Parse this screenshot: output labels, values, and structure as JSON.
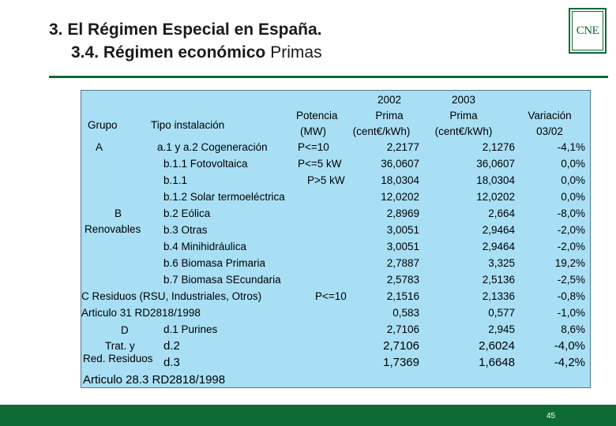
{
  "header": {
    "title_line1": "3. El Régimen Especial en España.",
    "title_line2_main": "3.4. Régimen económico",
    "title_line2_sub": "Primas",
    "logo_text": "CNE"
  },
  "table": {
    "col_headers": {
      "grupo": "Grupo",
      "tipo": "Tipo instalación",
      "potencia_line1": "Potencia",
      "potencia_line2": "(MW)",
      "y2002_line0": "2002",
      "y2002_line1": "Prima",
      "y2002_line2": "(cent€/kWh)",
      "y2003_line0": "2003",
      "y2003_line1": "Prima",
      "y2003_line2": "(cent€/kWh)",
      "var_line1": "Variación",
      "var_line2": "03/02"
    },
    "group_labels": {
      "a": "A",
      "b1": "B",
      "b2": "Renovables",
      "d1": "D",
      "d2": "Trat. y",
      "d3": "Red. Residuos"
    },
    "rows": [
      {
        "tipo": "a.1 y a.2 Cogeneración",
        "potencia": "P<=10",
        "p2002": "2,2177",
        "p2003": "2,1276",
        "var": "-4,1%"
      },
      {
        "tipo": "b.1.1 Fotovoltaica",
        "potencia": "P<=5 kW",
        "p2002": "36,0607",
        "p2003": "36,0607",
        "var": "0,0%"
      },
      {
        "tipo": "b.1.1",
        "potencia": "P>5 kW",
        "p2002": "18,0304",
        "p2003": "18,0304",
        "var": "0,0%"
      },
      {
        "tipo": "b.1.2 Solar termoeléctrica",
        "potencia": "",
        "p2002": "12,0202",
        "p2003": "12,0202",
        "var": "0,0%"
      },
      {
        "tipo": "b.2 Eólica",
        "potencia": "",
        "p2002": "2,8969",
        "p2003": "2,664",
        "var": "-8,0%"
      },
      {
        "tipo": "b.3 Otras",
        "potencia": "",
        "p2002": "3,0051",
        "p2003": "2,9464",
        "var": "-2,0%"
      },
      {
        "tipo": "b.4 Minihidráulica",
        "potencia": "",
        "p2002": "3,0051",
        "p2003": "2,9464",
        "var": "-2,0%"
      },
      {
        "tipo": "b.6 Biomasa Primaria",
        "potencia": "",
        "p2002": "2,7887",
        "p2003": "3,325",
        "var": "19,2%"
      },
      {
        "tipo": "b.7 Biomasa SEcundaria",
        "potencia": "",
        "p2002": "2,5783",
        "p2003": "2,5136",
        "var": "-2,5%"
      },
      {
        "tipo": "C Residuos (RSU, Industriales, Otros)",
        "potencia": "P<=10",
        "p2002": "2,1516",
        "p2003": "2,1336",
        "var": "-0,8%"
      },
      {
        "tipo": "Articulo 31 RD2818/1998",
        "potencia": "",
        "p2002": "0,583",
        "p2003": "0,577",
        "var": "-1,0%"
      },
      {
        "tipo": "d.1 Purines",
        "potencia": "",
        "p2002": "2,7106",
        "p2003": "2,945",
        "var": "8,6%"
      },
      {
        "tipo": "d.2",
        "potencia": "",
        "p2002": "2,7106",
        "p2003": "2,6024",
        "var": "-4,0%"
      },
      {
        "tipo": "d.3",
        "potencia": "",
        "p2002": "1,7369",
        "p2003": "1,6648",
        "var": "-4,2%"
      }
    ],
    "footer_row": "Articulo 28.3 RD2818/1998"
  },
  "footer": {
    "page_number": "45"
  },
  "colors": {
    "brand_green": "#0d6b34",
    "table_background": "#a9dff5"
  }
}
